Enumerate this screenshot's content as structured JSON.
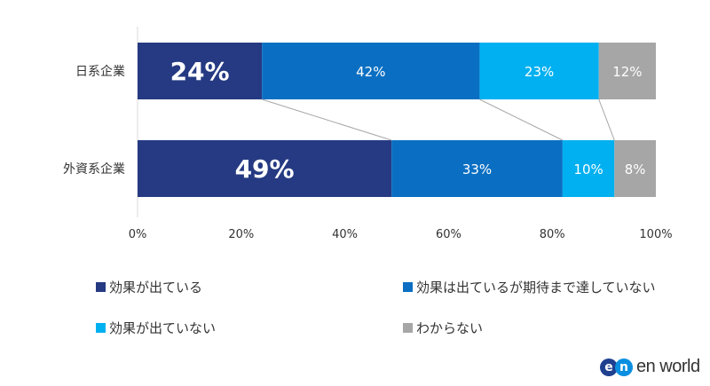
{
  "chart_data": {
    "type": "bar",
    "orientation": "horizontal",
    "stacked": true,
    "percent": true,
    "categories": [
      "日系企業",
      "外資系企業"
    ],
    "series": [
      {
        "name": "効果が出ている",
        "values": [
          24,
          49
        ],
        "color": "#253a82",
        "label_color": "#ffffff"
      },
      {
        "name": "効果は出ているが期待まで達していない",
        "values": [
          42,
          33
        ],
        "color": "#0a6fc2",
        "label_color": "#ffffff"
      },
      {
        "name": "効果が出ていない",
        "values": [
          23,
          10
        ],
        "color": "#00b0f0",
        "label_color": "#ffffff"
      },
      {
        "name": "わからない",
        "values": [
          12,
          8
        ],
        "color": "#a6a6a6",
        "label_color": "#ffffff"
      }
    ],
    "data_labels": [
      [
        "24%",
        "42%",
        "23%",
        "12%"
      ],
      [
        "49%",
        "33%",
        "10%",
        "8%"
      ]
    ],
    "xlim": [
      0,
      100
    ],
    "x_ticks": [
      "0%",
      "20%",
      "40%",
      "60%",
      "80%",
      "100%"
    ],
    "grid": false,
    "series_lines": true,
    "legend_position": "bottom"
  },
  "logo": {
    "mark_e": "e",
    "mark_n": "n",
    "text": "en world"
  }
}
